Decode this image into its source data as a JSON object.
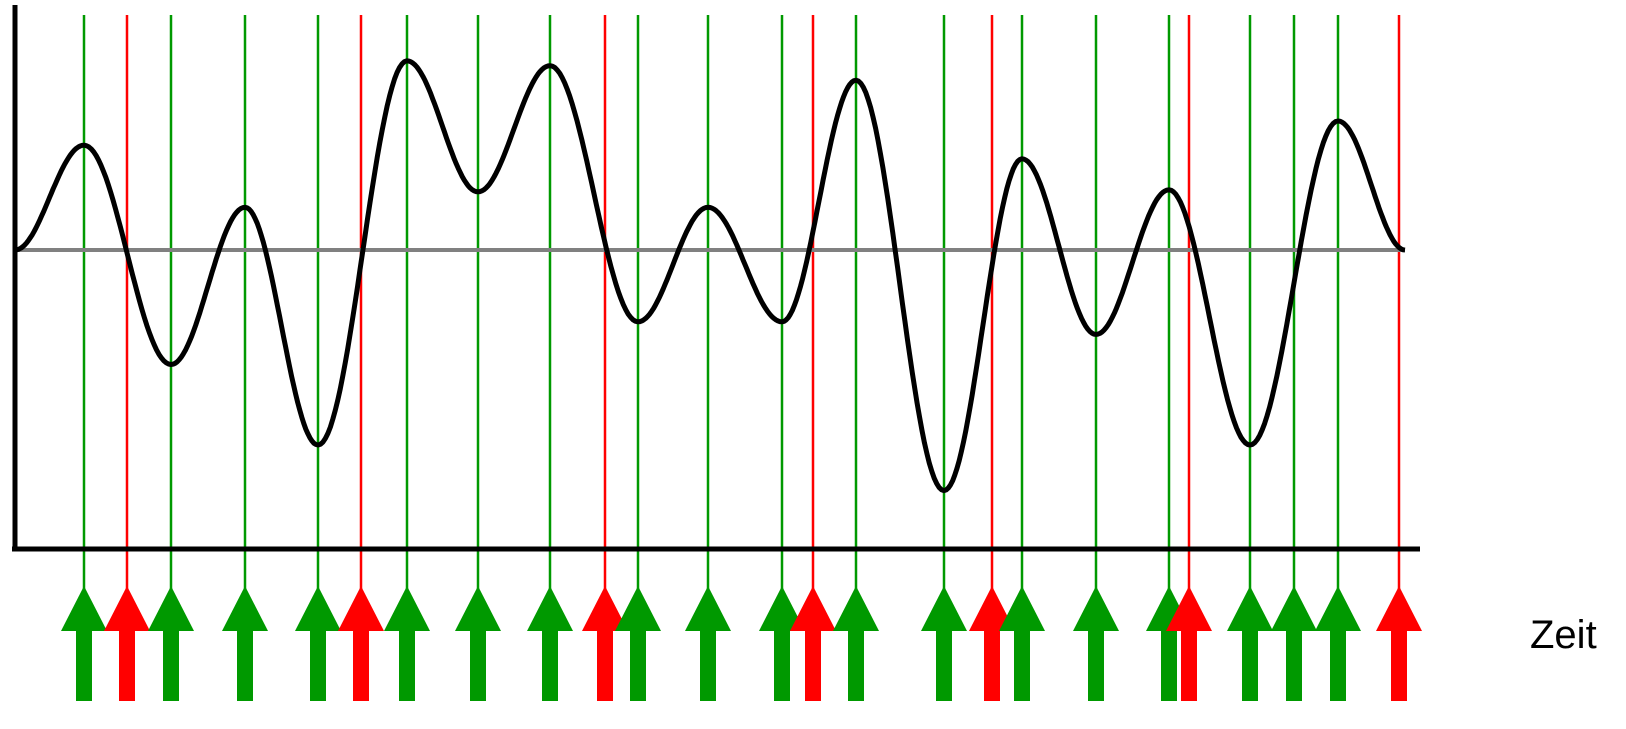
{
  "x_axis_label": "Zeit",
  "colors": {
    "background": "#ffffff",
    "waveform": "#000000",
    "baseline": "#808080",
    "axes": "#000000",
    "extremum_marker": "#009900",
    "zero_crossing_marker": "#ff0000"
  },
  "waveform_extrema": [
    0.0,
    1.08,
    -1.18,
    0.44,
    -2.01,
    1.95,
    0.6,
    1.9,
    -0.74,
    0.44,
    -0.74,
    1.75,
    -2.48,
    0.94,
    -0.87,
    0.62,
    -2.01,
    1.33,
    0.0
  ],
  "event_markers": [
    {
      "kind": "extremum"
    },
    {
      "kind": "zero_crossing"
    },
    {
      "kind": "extremum"
    },
    {
      "kind": "extremum"
    },
    {
      "kind": "extremum"
    },
    {
      "kind": "zero_crossing"
    },
    {
      "kind": "extremum"
    },
    {
      "kind": "extremum"
    },
    {
      "kind": "extremum"
    },
    {
      "kind": "zero_crossing"
    },
    {
      "kind": "extremum"
    },
    {
      "kind": "extremum"
    },
    {
      "kind": "extremum"
    },
    {
      "kind": "zero_crossing"
    },
    {
      "kind": "extremum"
    },
    {
      "kind": "extremum"
    },
    {
      "kind": "zero_crossing"
    },
    {
      "kind": "extremum"
    },
    {
      "kind": "extremum"
    },
    {
      "kind": "extremum"
    },
    {
      "kind": "zero_crossing"
    },
    {
      "kind": "extremum"
    },
    {
      "kind": "extremum"
    },
    {
      "kind": "extremum"
    },
    {
      "kind": "zero_crossing"
    }
  ]
}
